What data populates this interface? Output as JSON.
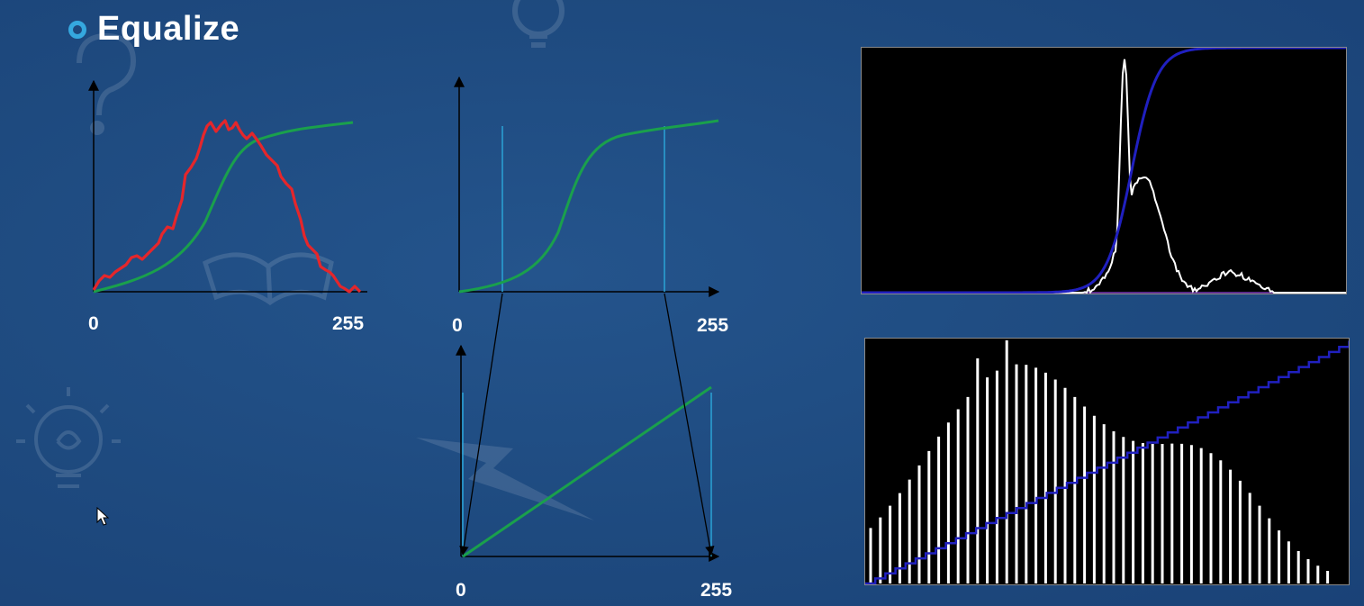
{
  "slide": {
    "title": "Equalize",
    "bullet_color": "#35a8df",
    "background_color": "#1d4a80"
  },
  "diagram_left": {
    "x_min_label": "0",
    "x_max_label": "255",
    "histogram_color": "#e5262b",
    "cdf_color": "#1aa04c"
  },
  "diagram_middle_top": {
    "x_min_label": "0",
    "x_max_label": "255",
    "cdf_color": "#1aa04c",
    "marker_color": "#2aa3d6"
  },
  "diagram_middle_bottom": {
    "x_min_label": "0",
    "x_max_label": "255",
    "line_color": "#1aa04c",
    "marker_color": "#2aa3d6"
  },
  "histogram_top_right": {
    "histogram_color": "#ffffff",
    "cdf_color": "#2020c0",
    "background": "#000000"
  },
  "histogram_bottom_right": {
    "histogram_color": "#ffffff",
    "cdf_color": "#2020c0",
    "background": "#000000"
  },
  "decorations": [
    "question-mark-icon",
    "lightbulb-icon",
    "book-icon",
    "lightning-icon"
  ]
}
